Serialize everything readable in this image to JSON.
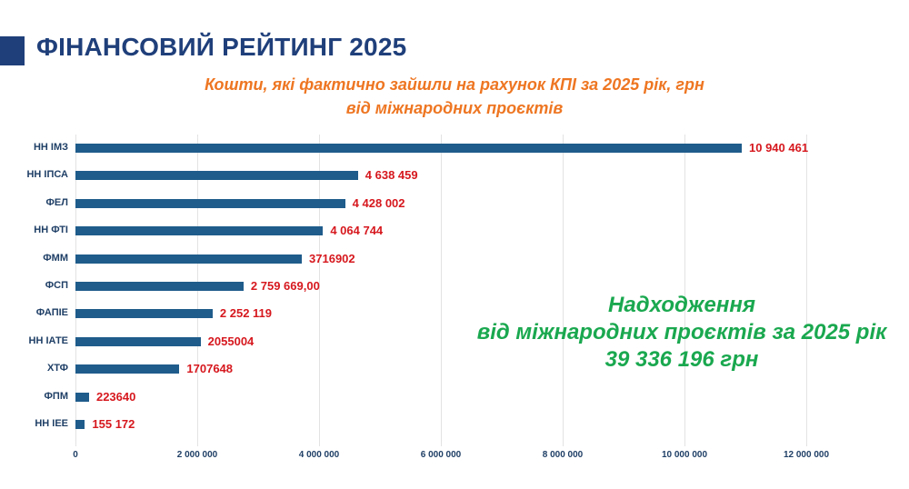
{
  "header": {
    "title": "ФІНАНСОВИЙ РЕЙТИНГ 2025",
    "subtitle_line1": "Кошти, які фактично зайшли на рахунок КПІ за 2025 рік, грн",
    "subtitle_line2": "від міжнародних проєктів"
  },
  "summary": {
    "line1": "Надходження",
    "line2": "від міжнародних проєктів за 2025 рік",
    "line3": "39 336 196 грн"
  },
  "colors": {
    "title": "#1f3f7a",
    "subtitle": "#ee7622",
    "bar": "#1f5c8b",
    "value_label": "#d6181e",
    "summary": "#1aa84f"
  },
  "chart_data": {
    "type": "bar",
    "orientation": "horizontal",
    "title": "Кошти, які фактично зайшли на рахунок КПІ за 2025 рік, грн від міжнародних проєктів",
    "xlabel": "",
    "ylabel": "",
    "xlim": [
      0,
      12000000
    ],
    "grid": true,
    "x_ticks": [
      "0",
      "2 000 000",
      "4 000 000",
      "6 000 000",
      "8 000 000",
      "10 000 000",
      "12 000 000"
    ],
    "categories": [
      "НН ІМЗ",
      "НН ІПСА",
      "ФЕЛ",
      "НН ФТІ",
      "ФММ",
      "ФСП",
      "ФАПІЕ",
      "НН ІАТЕ",
      "ХТФ",
      "ФПМ",
      "НН ІЕЕ"
    ],
    "values": [
      10940461,
      4638459,
      4428002,
      4064744,
      3716902,
      2759669,
      2252119,
      2055004,
      1707648,
      223640,
      155172
    ],
    "value_labels": [
      "10 940 461",
      "4 638 459",
      "4 428 002",
      "4 064 744",
      "3716902",
      "2 759 669,00",
      "2 252 119",
      "2055004",
      "1707648",
      "223640",
      "155 172"
    ]
  }
}
